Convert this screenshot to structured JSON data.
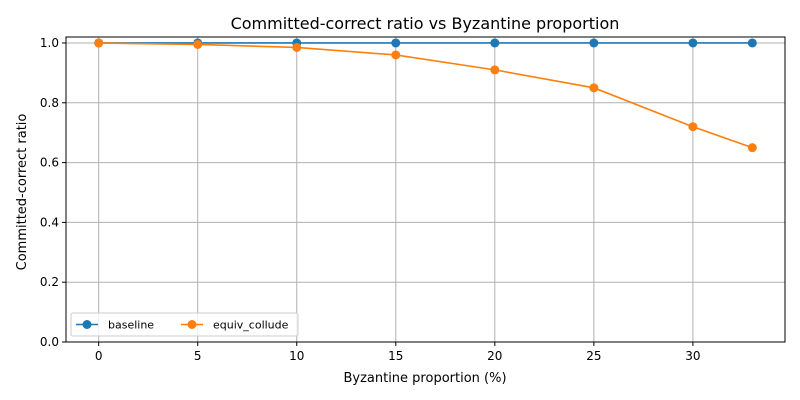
{
  "chart_data": {
    "type": "line",
    "title": "Committed-correct ratio vs Byzantine proportion",
    "xlabel": "Byzantine proportion (%)",
    "ylabel": "Committed-correct ratio",
    "x": [
      0,
      5,
      10,
      15,
      20,
      25,
      30,
      33
    ],
    "xlim": [
      -1.65,
      34.65
    ],
    "ylim": [
      0.0,
      1.02
    ],
    "xticks": [
      0,
      5,
      10,
      15,
      20,
      25,
      30
    ],
    "xtick_labels": [
      "0",
      "5",
      "10",
      "15",
      "20",
      "25",
      "30"
    ],
    "yticks": [
      0.0,
      0.2,
      0.4,
      0.6,
      0.8,
      1.0
    ],
    "ytick_labels": [
      "0.0",
      "0.2",
      "0.4",
      "0.6",
      "0.8",
      "1.0"
    ],
    "grid": true,
    "legend_position": "lower-left",
    "series": [
      {
        "name": "baseline",
        "color": "#1f77b4",
        "marker": "circle",
        "values": [
          1.0,
          1.0,
          1.0,
          1.0,
          1.0,
          1.0,
          1.0,
          1.0
        ]
      },
      {
        "name": "equiv_collude",
        "color": "#ff7f0e",
        "marker": "circle",
        "values": [
          1.0,
          0.995,
          0.985,
          0.96,
          0.91,
          0.85,
          0.72,
          0.65
        ]
      }
    ]
  }
}
